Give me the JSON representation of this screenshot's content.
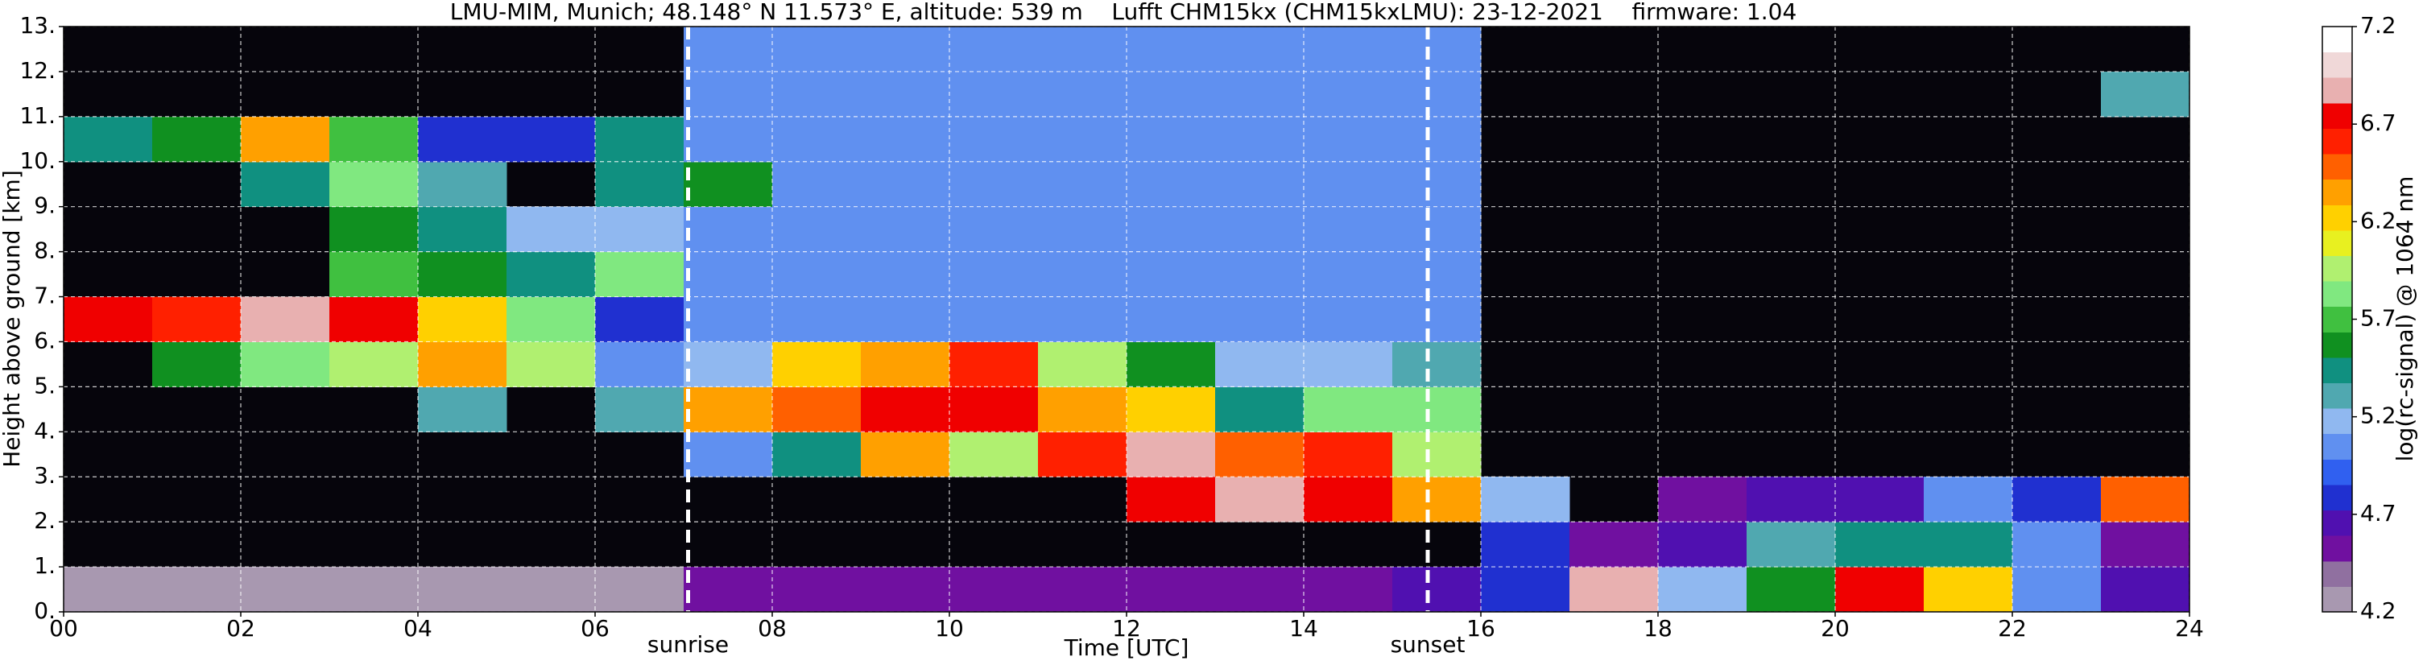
{
  "chart_data": {
    "type": "heatmap",
    "title": "LMU-MIM, Munich; 48.148° N 11.573° E, altitude: 539 m    Lufft CHM15kx (CHM15kxLMU): 23-12-2021    firmware: 1.04",
    "x_label": "Time [UTC]",
    "y_label": "Height above ground [km]",
    "colorbar_label": "log(rc-signal) @ 1064 nm",
    "xlim": [
      0,
      24
    ],
    "xticks": [
      {
        "value": 0,
        "label": "00"
      },
      {
        "value": 2,
        "label": "02"
      },
      {
        "value": 4,
        "label": "04"
      },
      {
        "value": 6,
        "label": "06"
      },
      {
        "value": 8,
        "label": "08"
      },
      10,
      12,
      14,
      16,
      18,
      20,
      22,
      24
    ],
    "ylim": [
      0,
      13
    ],
    "yticks": [
      {
        "value": 0,
        "label": "0."
      },
      {
        "value": 1,
        "label": "1."
      },
      {
        "value": 2,
        "label": "2."
      },
      {
        "value": 3,
        "label": "3."
      },
      {
        "value": 4,
        "label": "4."
      },
      {
        "value": 5,
        "label": "5."
      },
      {
        "value": 6,
        "label": "6."
      },
      {
        "value": 7,
        "label": "7."
      },
      {
        "value": 8,
        "label": "8."
      },
      {
        "value": 9,
        "label": "9."
      },
      {
        "value": 10,
        "label": "10."
      },
      {
        "value": 11,
        "label": "11."
      },
      {
        "value": 12,
        "label": "12."
      },
      {
        "value": 13,
        "label": "13."
      }
    ],
    "zlim": [
      4.2,
      7.2
    ],
    "zticks": [
      4.2,
      4.7,
      5.2,
      5.7,
      6.2,
      6.7,
      7.2
    ],
    "grid": true,
    "colormap": [
      "#a898b0",
      "#9070a0",
      "#7010a0",
      "#5010b0",
      "#2030d0",
      "#3060f0",
      "#6090f0",
      "#90b8f0",
      "#50a8b0",
      "#109080",
      "#109020",
      "#40c040",
      "#80e880",
      "#b0f070",
      "#e8f020",
      "#ffd000",
      "#ffa000",
      "#ff6000",
      "#ff2000",
      "#f00000",
      "#e8b0b0",
      "#f0d8d8",
      "#ffffff"
    ],
    "xbins": [
      0,
      1,
      2,
      3,
      4,
      5,
      6,
      7,
      8,
      9,
      10,
      11,
      12,
      13,
      14,
      15,
      16,
      17,
      18,
      19,
      20,
      21,
      22,
      23,
      24
    ],
    "ybins": [
      0,
      1,
      2,
      3,
      4,
      5,
      6,
      7,
      8,
      9,
      10,
      11,
      12,
      13
    ],
    "z": [
      [
        4.3,
        4.3,
        4.3,
        4.3,
        4.3,
        4.3,
        4.3,
        4.5,
        4.5,
        4.5,
        4.5,
        4.5,
        4.5,
        4.5,
        4.5,
        4.6,
        4.8,
        6.9,
        5.2,
        5.6,
        6.8,
        6.2,
        5.0,
        4.7
      ],
      [
        null,
        null,
        null,
        null,
        null,
        null,
        null,
        null,
        null,
        null,
        null,
        null,
        null,
        null,
        null,
        null,
        4.8,
        4.5,
        4.6,
        5.3,
        5.5,
        5.4,
        5.0,
        4.5
      ],
      [
        null,
        null,
        null,
        null,
        null,
        null,
        null,
        null,
        null,
        null,
        null,
        null,
        6.8,
        6.9,
        6.8,
        6.3,
        5.2,
        null,
        4.5,
        4.6,
        4.7,
        5.0,
        4.8,
        6.5
      ],
      [
        null,
        null,
        null,
        null,
        null,
        null,
        null,
        5.0,
        5.5,
        6.4,
        6.0,
        6.6,
        6.9,
        6.5,
        6.6,
        6.0,
        null,
        null,
        null,
        null,
        null,
        null,
        null,
        null
      ],
      [
        null,
        null,
        null,
        null,
        5.3,
        null,
        5.3,
        6.3,
        6.5,
        6.8,
        6.7,
        6.3,
        6.2,
        5.5,
        5.8,
        5.8,
        null,
        null,
        null,
        null,
        null,
        null,
        null,
        null
      ],
      [
        null,
        5.6,
        5.8,
        6.0,
        6.3,
        6.0,
        5.0,
        5.2,
        6.2,
        6.4,
        6.6,
        6.0,
        5.6,
        5.2,
        5.2,
        5.3,
        null,
        null,
        null,
        null,
        null,
        null,
        null,
        null
      ],
      [
        6.8,
        6.6,
        6.9,
        6.7,
        6.2,
        5.8,
        4.8,
        5.0,
        5.0,
        5.0,
        5.0,
        5.0,
        5.0,
        5.0,
        5.0,
        5.0,
        null,
        null,
        null,
        null,
        null,
        null,
        null,
        null
      ],
      [
        null,
        null,
        null,
        5.7,
        5.6,
        5.5,
        5.8,
        5.0,
        5.0,
        5.0,
        5.0,
        5.0,
        5.0,
        5.0,
        5.0,
        5.0,
        null,
        null,
        null,
        null,
        null,
        null,
        null,
        null
      ],
      [
        null,
        null,
        null,
        5.6,
        5.4,
        5.2,
        5.2,
        5.1,
        5.0,
        5.0,
        5.0,
        5.0,
        5.0,
        5.0,
        5.0,
        5.0,
        null,
        null,
        null,
        null,
        null,
        null,
        null,
        null
      ],
      [
        null,
        null,
        5.5,
        5.8,
        5.3,
        null,
        5.5,
        5.6,
        5.0,
        5.0,
        5.0,
        5.0,
        5.0,
        5.0,
        5.0,
        5.0,
        null,
        null,
        null,
        null,
        null,
        null,
        null,
        null
      ],
      [
        5.5,
        5.6,
        6.4,
        5.7,
        4.8,
        4.8,
        5.5,
        5.0,
        5.0,
        5.0,
        5.0,
        5.0,
        5.0,
        5.0,
        5.0,
        5.0,
        null,
        null,
        null,
        null,
        null,
        null,
        null,
        null
      ],
      [
        null,
        null,
        null,
        null,
        null,
        null,
        null,
        5.0,
        5.0,
        5.0,
        5.0,
        5.0,
        5.0,
        5.0,
        5.0,
        5.0,
        null,
        null,
        null,
        null,
        null,
        null,
        null,
        5.3
      ],
      [
        null,
        null,
        null,
        null,
        null,
        null,
        null,
        5.0,
        5.0,
        5.0,
        5.0,
        5.0,
        5.0,
        5.0,
        5.0,
        5.0,
        null,
        null,
        null,
        null,
        null,
        null,
        null,
        null
      ]
    ],
    "annotations": [
      {
        "text": "sunrise",
        "x": 7.05
      },
      {
        "text": "sunset",
        "x": 15.4
      }
    ]
  }
}
